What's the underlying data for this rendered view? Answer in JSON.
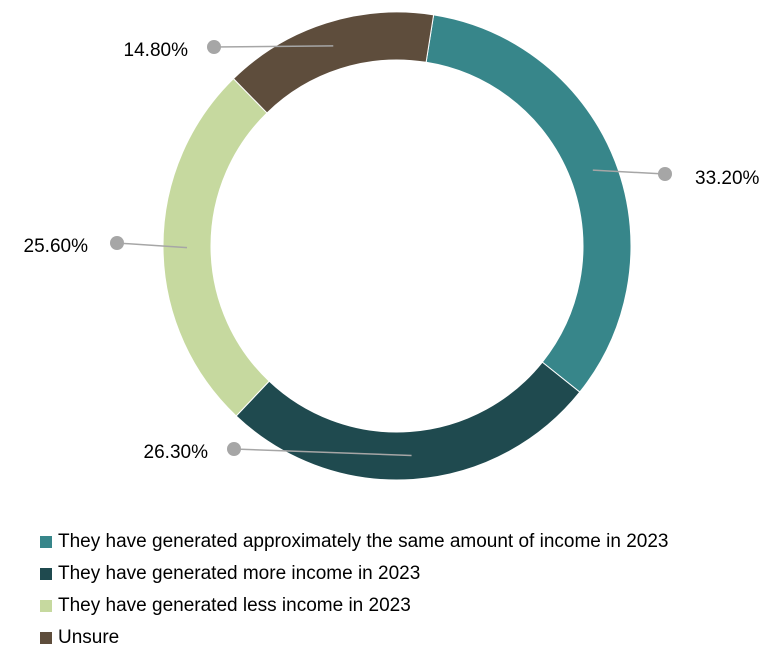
{
  "chart_data": {
    "type": "pie",
    "donut": true,
    "title": "",
    "legend_position": "bottom",
    "series": [
      {
        "name": "They have generated approximately the same amount of income in 2023",
        "value": 33.2,
        "label": "33.20%",
        "color": "#37868a"
      },
      {
        "name": "They have generated more income in 2023",
        "value": 26.3,
        "label": "26.30%",
        "color": "#1f4a4f"
      },
      {
        "name": "They have generated less income in 2023",
        "value": 25.6,
        "label": "25.60%",
        "color": "#c6d99f"
      },
      {
        "name": "Unsure",
        "value": 14.8,
        "label": "14.80%",
        "color": "#5e4d3c"
      }
    ]
  },
  "leader_color": "#a6a6a6"
}
